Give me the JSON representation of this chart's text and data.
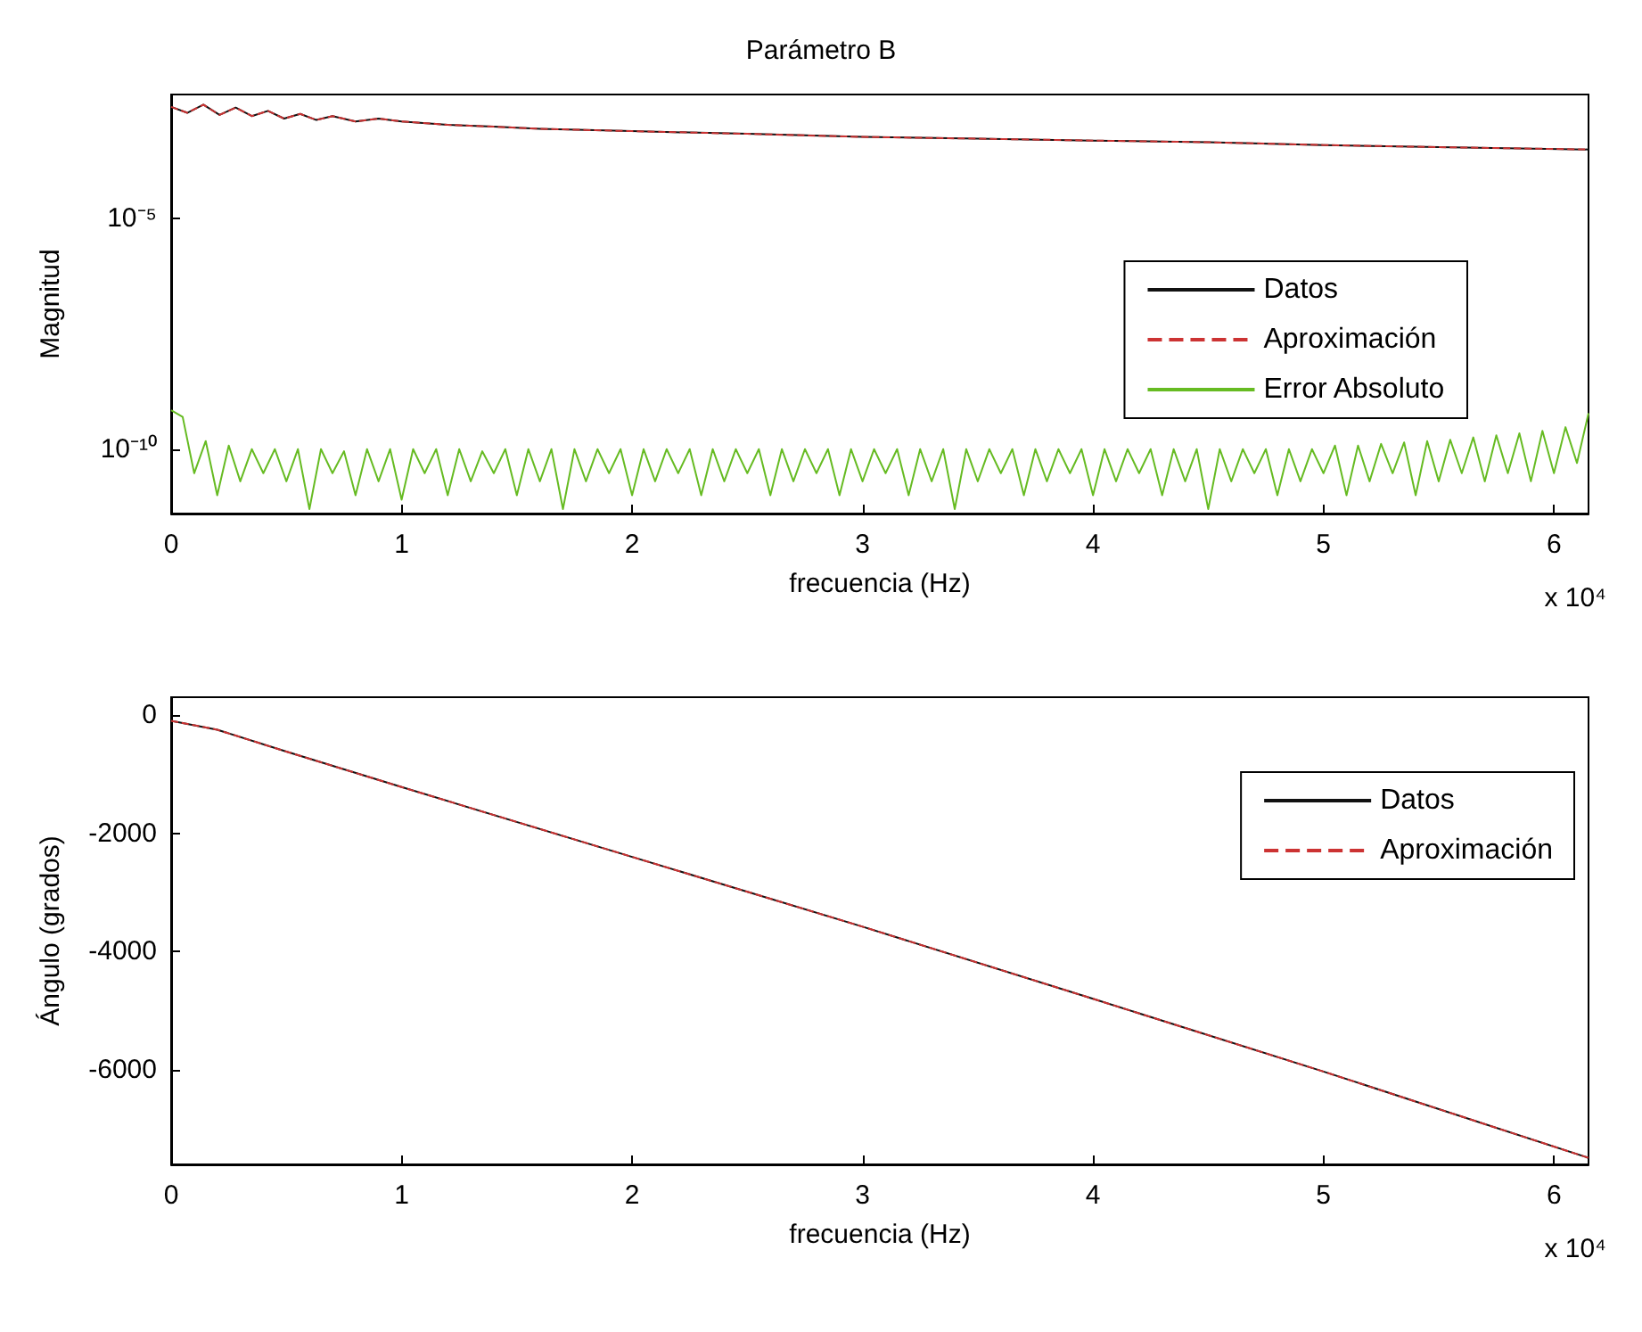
{
  "chart_data": [
    {
      "type": "line",
      "title": "Parámetro B",
      "xlabel": "frecuencia (Hz)",
      "ylabel": "Magnitud",
      "log": "y",
      "legend": "right",
      "grid": false,
      "marker": "none",
      "xlim": [
        0,
        6.15
      ],
      "xticks": [
        0,
        1,
        2,
        3,
        4,
        5,
        6
      ],
      "ylim": [
        4e-12,
        0.005
      ],
      "yticks": [
        {
          "value": 1e-10,
          "label": "10⁻¹⁰"
        },
        {
          "value": 1e-05,
          "label": "10⁻⁵"
        }
      ],
      "annotations": [
        "x 10⁴"
      ],
      "series": [
        {
          "name": "Datos",
          "color": "#111111",
          "line_style": "solid",
          "x": [
            0,
            0.07,
            0.14,
            0.21,
            0.28,
            0.35,
            0.42,
            0.49,
            0.56,
            0.63,
            0.7,
            0.8,
            0.9,
            1,
            1.2,
            1.4,
            1.6,
            2,
            2.5,
            3,
            3.5,
            4,
            4.5,
            5,
            5.5,
            6.15
          ],
          "values": [
            0.0027,
            0.002,
            0.003,
            0.0018,
            0.0026,
            0.0017,
            0.0022,
            0.0015,
            0.0019,
            0.0014,
            0.0017,
            0.0013,
            0.0015,
            0.0013,
            0.0011,
            0.001,
            0.0009,
            0.0008,
            0.0007,
            0.0006,
            0.00055,
            0.0005,
            0.00046,
            0.0004,
            0.00036,
            0.00032
          ]
        },
        {
          "name": "Aproximación",
          "color": "#cc3333",
          "line_style": "dashed",
          "x": [
            0,
            0.07,
            0.14,
            0.21,
            0.28,
            0.35,
            0.42,
            0.49,
            0.56,
            0.63,
            0.7,
            0.8,
            0.9,
            1,
            1.2,
            1.4,
            1.6,
            2,
            2.5,
            3,
            3.5,
            4,
            4.5,
            5,
            5.5,
            6.15
          ],
          "values": [
            0.0027,
            0.002,
            0.003,
            0.0018,
            0.0026,
            0.0017,
            0.0022,
            0.0015,
            0.0019,
            0.0014,
            0.0017,
            0.0013,
            0.0015,
            0.0013,
            0.0011,
            0.001,
            0.0009,
            0.0008,
            0.0007,
            0.0006,
            0.00055,
            0.0005,
            0.00046,
            0.0004,
            0.00036,
            0.00032
          ]
        },
        {
          "name": "Error Absoluto",
          "color": "#66bb22",
          "line_style": "solid",
          "x": [
            0,
            0.05,
            0.1,
            0.15,
            0.2,
            0.25,
            0.3,
            0.35,
            0.4,
            0.45,
            0.5,
            0.55,
            0.6,
            0.65,
            0.7,
            0.75,
            0.8,
            0.85,
            0.9,
            0.95,
            1,
            1.05,
            1.1,
            1.15,
            1.2,
            1.25,
            1.3,
            1.35,
            1.4,
            1.45,
            1.5,
            1.55,
            1.6,
            1.65,
            1.7,
            1.75,
            1.8,
            1.85,
            1.9,
            1.95,
            2,
            2.05,
            2.1,
            2.15,
            2.2,
            2.25,
            2.3,
            2.35,
            2.4,
            2.45,
            2.5,
            2.55,
            2.6,
            2.65,
            2.7,
            2.75,
            2.8,
            2.85,
            2.9,
            2.95,
            3,
            3.05,
            3.1,
            3.15,
            3.2,
            3.25,
            3.3,
            3.35,
            3.4,
            3.45,
            3.5,
            3.55,
            3.6,
            3.65,
            3.7,
            3.75,
            3.8,
            3.85,
            3.9,
            3.95,
            4,
            4.05,
            4.1,
            4.15,
            4.2,
            4.25,
            4.3,
            4.35,
            4.4,
            4.45,
            4.5,
            4.55,
            4.6,
            4.65,
            4.7,
            4.75,
            4.8,
            4.85,
            4.9,
            4.95,
            5,
            5.05,
            5.1,
            5.15,
            5.2,
            5.25,
            5.3,
            5.35,
            5.4,
            5.45,
            5.5,
            5.55,
            5.6,
            5.65,
            5.7,
            5.75,
            5.8,
            5.85,
            5.9,
            5.95,
            6,
            6.05,
            6.1,
            6.15
          ],
          "values": [
            7e-10,
            5e-10,
            3e-11,
            1.5e-10,
            1e-11,
            1.2e-10,
            2e-11,
            1e-10,
            3e-11,
            1e-10,
            2e-11,
            1e-10,
            5e-12,
            1e-10,
            3e-11,
            9e-11,
            1e-11,
            1e-10,
            2e-11,
            1e-10,
            8e-12,
            1e-10,
            3e-11,
            1e-10,
            1e-11,
            1e-10,
            2e-11,
            9e-11,
            3e-11,
            1e-10,
            1e-11,
            1e-10,
            2e-11,
            1e-10,
            5e-12,
            1e-10,
            2e-11,
            1e-10,
            3e-11,
            1e-10,
            1e-11,
            1e-10,
            2e-11,
            1e-10,
            3e-11,
            1e-10,
            1e-11,
            1e-10,
            2e-11,
            1e-10,
            3e-11,
            1e-10,
            1e-11,
            1e-10,
            2e-11,
            1e-10,
            3e-11,
            1e-10,
            1e-11,
            1e-10,
            2e-11,
            1e-10,
            3e-11,
            1e-10,
            1e-11,
            1e-10,
            2e-11,
            1e-10,
            5e-12,
            1e-10,
            2e-11,
            1e-10,
            3e-11,
            1e-10,
            1e-11,
            1e-10,
            2e-11,
            1e-10,
            3e-11,
            1e-10,
            1e-11,
            1e-10,
            2e-11,
            1e-10,
            3e-11,
            1e-10,
            1e-11,
            1e-10,
            2e-11,
            1e-10,
            5e-12,
            1e-10,
            2e-11,
            1e-10,
            3e-11,
            1e-10,
            1e-11,
            1e-10,
            2e-11,
            1e-10,
            3e-11,
            1.2e-10,
            1e-11,
            1.2e-10,
            2e-11,
            1.3e-10,
            3e-11,
            1.4e-10,
            1e-11,
            1.5e-10,
            2e-11,
            1.6e-10,
            3e-11,
            1.8e-10,
            2e-11,
            2e-10,
            3e-11,
            2.2e-10,
            2e-11,
            2.5e-10,
            3e-11,
            3e-10,
            5e-11,
            6e-10
          ]
        }
      ]
    },
    {
      "type": "line",
      "xlabel": "frecuencia (Hz)",
      "ylabel": "Ángulo (grados)",
      "legend": "top right",
      "grid": false,
      "marker": "none",
      "xlim": [
        0,
        6.15
      ],
      "xticks": [
        0,
        1,
        2,
        3,
        4,
        5,
        6
      ],
      "ylim": [
        -7600,
        300
      ],
      "yticks": [
        -6000,
        -4000,
        -2000,
        0
      ],
      "annotations": [
        "x 10⁴"
      ],
      "series": [
        {
          "name": "Datos",
          "color": "#111111",
          "line_style": "solid",
          "x": [
            0,
            0.2,
            0.5,
            1,
            2,
            3,
            4,
            5,
            6.15
          ],
          "values": [
            -100,
            -250,
            -620,
            -1220,
            -2400,
            -3580,
            -4800,
            -6030,
            -7490
          ]
        },
        {
          "name": "Aproximación",
          "color": "#cc3333",
          "line_style": "dashed",
          "x": [
            0,
            0.2,
            0.5,
            1,
            2,
            3,
            4,
            5,
            6.15
          ],
          "values": [
            -100,
            -250,
            -620,
            -1220,
            -2400,
            -3580,
            -4800,
            -6030,
            -7490
          ]
        }
      ]
    }
  ]
}
